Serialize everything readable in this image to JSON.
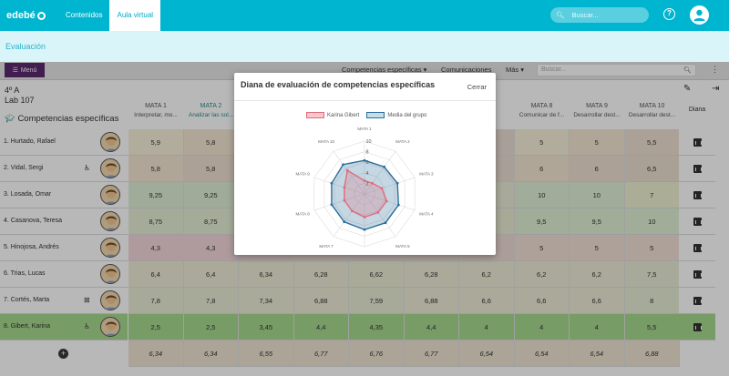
{
  "topbar": {
    "logo": "edebé",
    "tabs": [
      "Contenidos",
      "Aula virtual"
    ],
    "search_placeholder": "Buscar..."
  },
  "subbar": {
    "title": "Evaluación"
  },
  "toolbar": {
    "menu": "Menú",
    "items": [
      "Competencias específicas ▾",
      "Comunicaciones",
      "Más ▾"
    ],
    "search_placeholder": "Buscar..."
  },
  "class": {
    "line1": "4º A",
    "line2": "Lab 107",
    "section": "Competencias específicas"
  },
  "columns": [
    {
      "code": "MATA 1",
      "desc": "Interpretar, mo..."
    },
    {
      "code": "MATA 2",
      "desc": "Analizar las sol..."
    },
    {
      "code": "",
      "desc": ""
    },
    {
      "code": "",
      "desc": ""
    },
    {
      "code": "",
      "desc": ""
    },
    {
      "code": "",
      "desc": ""
    },
    {
      "code": "",
      "desc": ""
    },
    {
      "code": "MATA 8",
      "desc": "Comunicar de f..."
    },
    {
      "code": "MATA 9",
      "desc": "Desarrollar dest..."
    },
    {
      "code": "MATA 10",
      "desc": "Desarrollar dest..."
    }
  ],
  "diana_header": "Diana",
  "students": [
    {
      "name": "1. Hurtado, Rafael",
      "values": [
        "5,9",
        "5,8",
        "",
        "",
        "",
        "",
        "",
        "5",
        "5",
        "5,5"
      ]
    },
    {
      "name": "2. Vidal, Sergi",
      "values": [
        "5,8",
        "5,8",
        "",
        "",
        "",
        "",
        "",
        "6",
        "6",
        "6,5"
      ]
    },
    {
      "name": "3. Losada, Omar",
      "values": [
        "9,25",
        "9,25",
        "",
        "",
        "",
        "",
        "",
        "10",
        "10",
        "7"
      ]
    },
    {
      "name": "4. Casanova, Teresa",
      "values": [
        "8,75",
        "8,75",
        "",
        "",
        "",
        "",
        "",
        "9,5",
        "9,5",
        "10"
      ]
    },
    {
      "name": "5. Hinojosa, Andrés",
      "values": [
        "4,3",
        "4,3",
        "",
        "",
        "",
        "",
        "",
        "5",
        "5",
        "5"
      ]
    },
    {
      "name": "6. Trias, Lucas",
      "values": [
        "6,4",
        "6,4",
        "6,34",
        "6,28",
        "6,62",
        "6,28",
        "6,2",
        "6,2",
        "6,2",
        "7,5"
      ]
    },
    {
      "name": "7. Cortés, Marta",
      "values": [
        "7,8",
        "7,8",
        "7,34",
        "6,88",
        "7,59",
        "6,88",
        "6,6",
        "6,6",
        "6,6",
        "8"
      ]
    },
    {
      "name": "8. Gibert, Karina",
      "values": [
        "2,5",
        "2,5",
        "3,45",
        "4,4",
        "4,35",
        "4,4",
        "4",
        "4",
        "4",
        "5,5"
      ]
    }
  ],
  "averages": [
    "6,34",
    "6,34",
    "6,55",
    "6,77",
    "6,76",
    "6,77",
    "6,54",
    "6,54",
    "6,54",
    "6,88"
  ],
  "modal": {
    "title": "Diana de evaluación de competencias específicas",
    "close": "Cerrar",
    "legend": [
      "Karina Gibert",
      "Media del grupo"
    ]
  },
  "chart_data": {
    "type": "radar",
    "axes": [
      "MATA 1",
      "MATA 2",
      "MATA 3",
      "MATA 4",
      "MATA 5",
      "MATA 6",
      "MATA 7",
      "MATA 8",
      "MATA 9",
      "MATA 10"
    ],
    "rlim": [
      0,
      10
    ],
    "rticks": [
      "2",
      "4",
      "6",
      "8",
      "10"
    ],
    "series": [
      {
        "name": "Karina Gibert",
        "values": [
          2.5,
          2.5,
          3.45,
          4.4,
          4.35,
          4.4,
          4,
          4,
          4,
          5.5
        ],
        "color": "#e06b7a"
      },
      {
        "name": "Media del grupo",
        "values": [
          6.34,
          6.34,
          6.55,
          6.77,
          6.76,
          6.77,
          6.54,
          6.54,
          6.54,
          6.88
        ],
        "color": "#2f6e9b"
      }
    ]
  }
}
